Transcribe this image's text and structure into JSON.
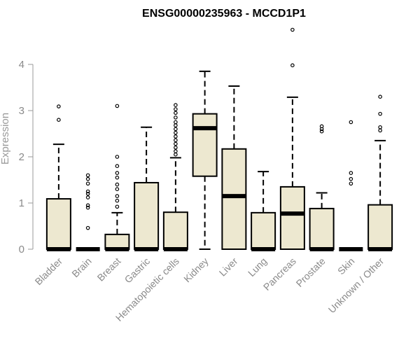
{
  "chart_data": {
    "type": "box",
    "title": "ENSG00000235963 - MCCD1P1",
    "xlabel": "",
    "ylabel": "Expression",
    "ylim": [
      0,
      5.0
    ],
    "yticks": [
      "0",
      "1",
      "2",
      "3",
      "4"
    ],
    "box_fill": "#ede8d0",
    "categories": [
      "Bladder",
      "Brain",
      "Breast",
      "Gastric",
      "Hematopoietic cells",
      "Kidney",
      "Liver",
      "Lung",
      "Pancreas",
      "Prostate",
      "Skin",
      "Unknown / Other"
    ],
    "boxes": [
      {
        "q1": 0,
        "median": 0,
        "q3": 1.09,
        "whisker_low": 0,
        "whisker_high": 2.27,
        "outliers": [
          2.8,
          3.09
        ]
      },
      {
        "q1": 0,
        "median": 0,
        "q3": 0,
        "whisker_low": 0,
        "whisker_high": 0,
        "outliers": [
          0.46,
          0.9,
          0.95,
          1.12,
          1.2,
          1.25,
          1.42,
          1.52,
          1.6
        ]
      },
      {
        "q1": 0,
        "median": 0,
        "q3": 0.32,
        "whisker_low": 0,
        "whisker_high": 0.79,
        "outliers": [
          0.92,
          1.05,
          1.15,
          1.3,
          1.4,
          1.55,
          1.65,
          1.8,
          2.0,
          3.1
        ]
      },
      {
        "q1": 0,
        "median": 0,
        "q3": 1.44,
        "whisker_low": 0,
        "whisker_high": 2.64,
        "outliers": []
      },
      {
        "q1": 0,
        "median": 0,
        "q3": 0.8,
        "whisker_low": 0,
        "whisker_high": 1.98,
        "outliers": [
          2.05,
          2.12,
          2.2,
          2.28,
          2.36,
          2.44,
          2.52,
          2.6,
          2.68,
          2.75,
          2.85,
          2.95,
          3.03,
          3.12
        ]
      },
      {
        "q1": 1.58,
        "median": 2.62,
        "q3": 2.93,
        "whisker_low": 0,
        "whisker_high": 3.85,
        "outliers": []
      },
      {
        "q1": 0,
        "median": 1.15,
        "q3": 2.17,
        "whisker_low": 0,
        "whisker_high": 3.53,
        "outliers": []
      },
      {
        "q1": 0,
        "median": 0,
        "q3": 0.79,
        "whisker_low": 0,
        "whisker_high": 1.68,
        "outliers": []
      },
      {
        "q1": 0,
        "median": 0.77,
        "q3": 1.35,
        "whisker_low": 0,
        "whisker_high": 3.29,
        "outliers": [
          3.98,
          4.75
        ]
      },
      {
        "q1": 0,
        "median": 0,
        "q3": 0.88,
        "whisker_low": 0,
        "whisker_high": 1.22,
        "outliers": [
          2.55,
          2.6,
          2.66
        ]
      },
      {
        "q1": 0,
        "median": 0,
        "q3": 0,
        "whisker_low": 0,
        "whisker_high": 0,
        "outliers": [
          1.42,
          1.52,
          1.65,
          2.75
        ]
      },
      {
        "q1": 0,
        "median": 0,
        "q3": 0.96,
        "whisker_low": 0,
        "whisker_high": 2.35,
        "outliers": [
          2.57,
          2.64,
          2.93,
          3.3
        ]
      }
    ]
  }
}
